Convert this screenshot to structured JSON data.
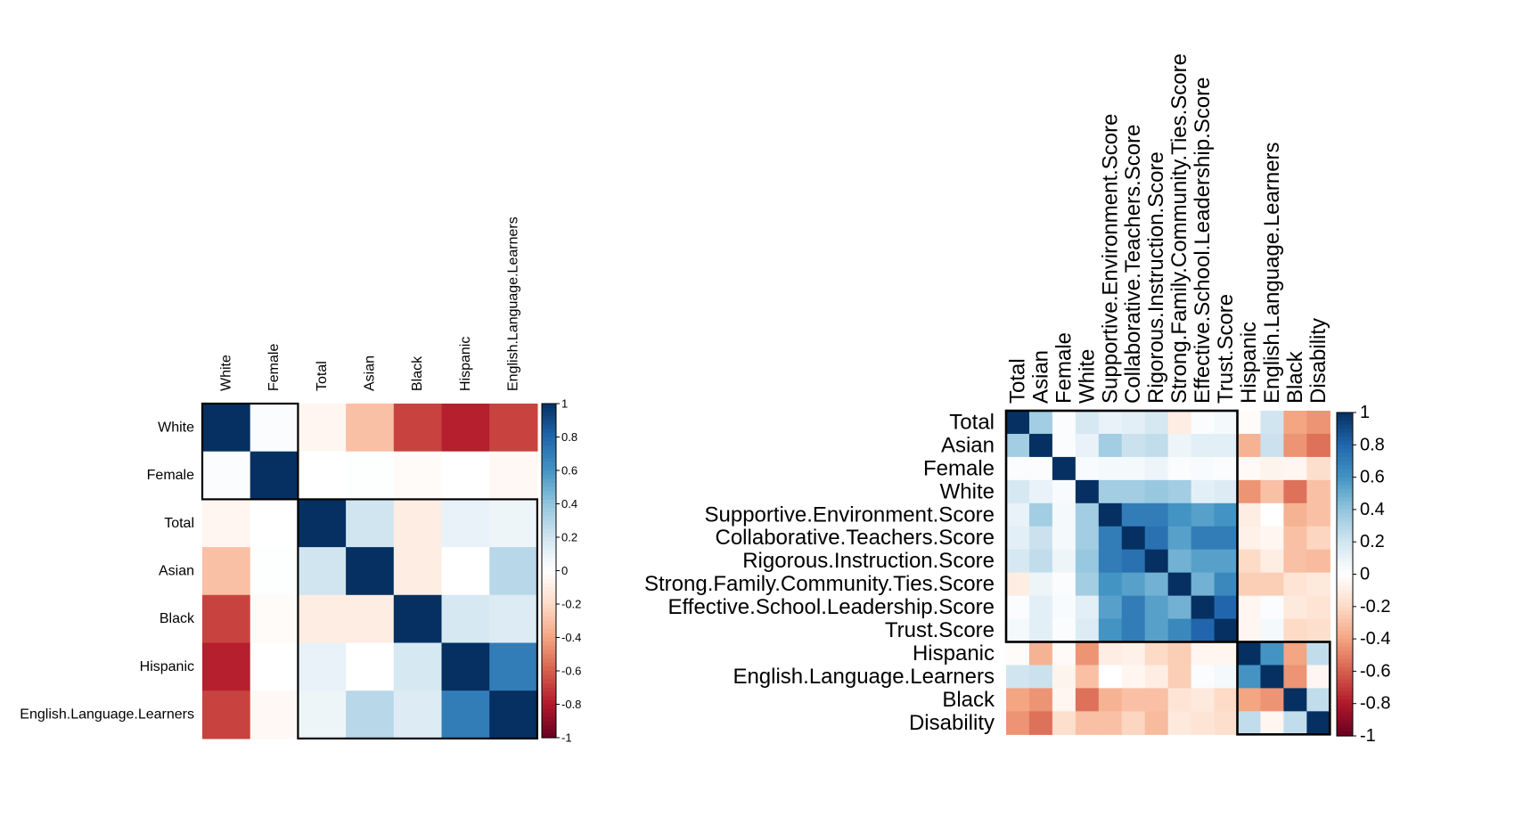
{
  "chart_data": [
    {
      "type": "heatmap",
      "title": "",
      "xlabel": "",
      "ylabel": "",
      "labels": [
        "White",
        "Female",
        "Total",
        "Asian",
        "Black",
        "Hispanic",
        "English.Language.Learners"
      ],
      "matrix": [
        [
          1.0,
          0.02,
          -0.05,
          -0.3,
          -0.68,
          -0.78,
          -0.68
        ],
        [
          0.02,
          1.0,
          0.0,
          0.01,
          -0.02,
          0.0,
          -0.04
        ],
        [
          -0.05,
          0.0,
          1.0,
          0.2,
          -0.1,
          0.1,
          0.08
        ],
        [
          -0.3,
          0.01,
          0.2,
          1.0,
          -0.1,
          0.0,
          0.28
        ],
        [
          -0.68,
          -0.02,
          -0.1,
          -0.1,
          1.0,
          0.18,
          0.15
        ],
        [
          -0.78,
          0.0,
          0.1,
          0.0,
          0.18,
          1.0,
          0.7
        ],
        [
          -0.68,
          -0.04,
          0.08,
          0.28,
          0.15,
          0.7,
          1.0
        ]
      ],
      "clusters": [
        [
          0,
          1
        ],
        [
          2,
          6
        ]
      ],
      "colorbar": {
        "range": [
          -1,
          1
        ],
        "ticks": [
          "1",
          "0.8",
          "0.6",
          "0.4",
          "0.2",
          "0",
          "-0.2",
          "-0.4",
          "-0.6",
          "-0.8",
          "-1"
        ]
      },
      "grid": false,
      "legend": "colorbar-right"
    },
    {
      "type": "heatmap",
      "title": "",
      "xlabel": "",
      "ylabel": "",
      "labels": [
        "Total",
        "Asian",
        "Female",
        "White",
        "Supportive.Environment.Score",
        "Collaborative.Teachers.Score",
        "Rigorous.Instruction.Score",
        "Strong.Family.Community.Ties.Score",
        "Effective.School.Leadership.Score",
        "Trust.Score",
        "Hispanic",
        "English.Language.Learners",
        "Black",
        "Disability"
      ],
      "matrix": [
        [
          1.0,
          0.35,
          0.02,
          0.18,
          0.1,
          0.12,
          0.18,
          -0.1,
          0.02,
          0.05,
          -0.02,
          0.2,
          -0.4,
          -0.45
        ],
        [
          0.35,
          1.0,
          0.02,
          0.1,
          0.35,
          0.22,
          0.25,
          0.08,
          0.12,
          0.12,
          -0.35,
          0.22,
          -0.45,
          -0.55
        ],
        [
          0.02,
          0.02,
          1.0,
          0.03,
          0.05,
          0.05,
          0.08,
          0.02,
          0.03,
          0.02,
          -0.03,
          -0.06,
          -0.05,
          -0.18
        ],
        [
          0.18,
          0.1,
          0.03,
          1.0,
          0.35,
          0.35,
          0.38,
          0.35,
          0.12,
          0.15,
          -0.45,
          -0.3,
          -0.55,
          -0.3
        ],
        [
          0.1,
          0.35,
          0.05,
          0.35,
          1.0,
          0.7,
          0.7,
          0.6,
          0.55,
          0.6,
          -0.1,
          0.0,
          -0.35,
          -0.3
        ],
        [
          0.12,
          0.22,
          0.05,
          0.35,
          0.7,
          1.0,
          0.75,
          0.55,
          0.7,
          0.7,
          -0.08,
          -0.05,
          -0.3,
          -0.22
        ],
        [
          0.18,
          0.25,
          0.08,
          0.38,
          0.7,
          0.75,
          1.0,
          0.48,
          0.55,
          0.55,
          -0.2,
          -0.1,
          -0.3,
          -0.32
        ],
        [
          -0.1,
          0.08,
          0.02,
          0.35,
          0.6,
          0.55,
          0.48,
          1.0,
          0.48,
          0.65,
          -0.25,
          -0.25,
          -0.15,
          -0.12
        ],
        [
          0.02,
          0.12,
          0.03,
          0.12,
          0.55,
          0.7,
          0.55,
          0.48,
          1.0,
          0.8,
          -0.05,
          0.02,
          -0.12,
          -0.15
        ],
        [
          0.05,
          0.12,
          0.02,
          0.15,
          0.6,
          0.7,
          0.55,
          0.65,
          0.8,
          1.0,
          -0.05,
          0.05,
          -0.2,
          -0.18
        ],
        [
          -0.02,
          -0.35,
          -0.03,
          -0.45,
          -0.1,
          -0.08,
          -0.2,
          -0.25,
          -0.05,
          -0.05,
          1.0,
          0.6,
          -0.4,
          0.25
        ],
        [
          0.2,
          0.22,
          -0.06,
          -0.3,
          0.0,
          -0.05,
          -0.1,
          -0.25,
          0.02,
          0.05,
          0.6,
          1.0,
          -0.45,
          -0.05
        ],
        [
          -0.4,
          -0.45,
          -0.05,
          -0.55,
          -0.35,
          -0.3,
          -0.3,
          -0.15,
          -0.12,
          -0.2,
          -0.4,
          -0.45,
          1.0,
          0.25
        ],
        [
          -0.45,
          -0.55,
          -0.18,
          -0.3,
          -0.3,
          -0.22,
          -0.32,
          -0.12,
          -0.15,
          -0.18,
          0.25,
          -0.05,
          0.25,
          1.0
        ]
      ],
      "clusters": [
        [
          0,
          9
        ],
        [
          10,
          13
        ]
      ],
      "colorbar": {
        "range": [
          -1,
          1
        ],
        "ticks": [
          "1",
          "0.8",
          "0.6",
          "0.4",
          "0.2",
          "0",
          "-0.2",
          "-0.4",
          "-0.6",
          "-0.8",
          "-1"
        ]
      },
      "grid": false,
      "legend": "colorbar-right"
    }
  ]
}
